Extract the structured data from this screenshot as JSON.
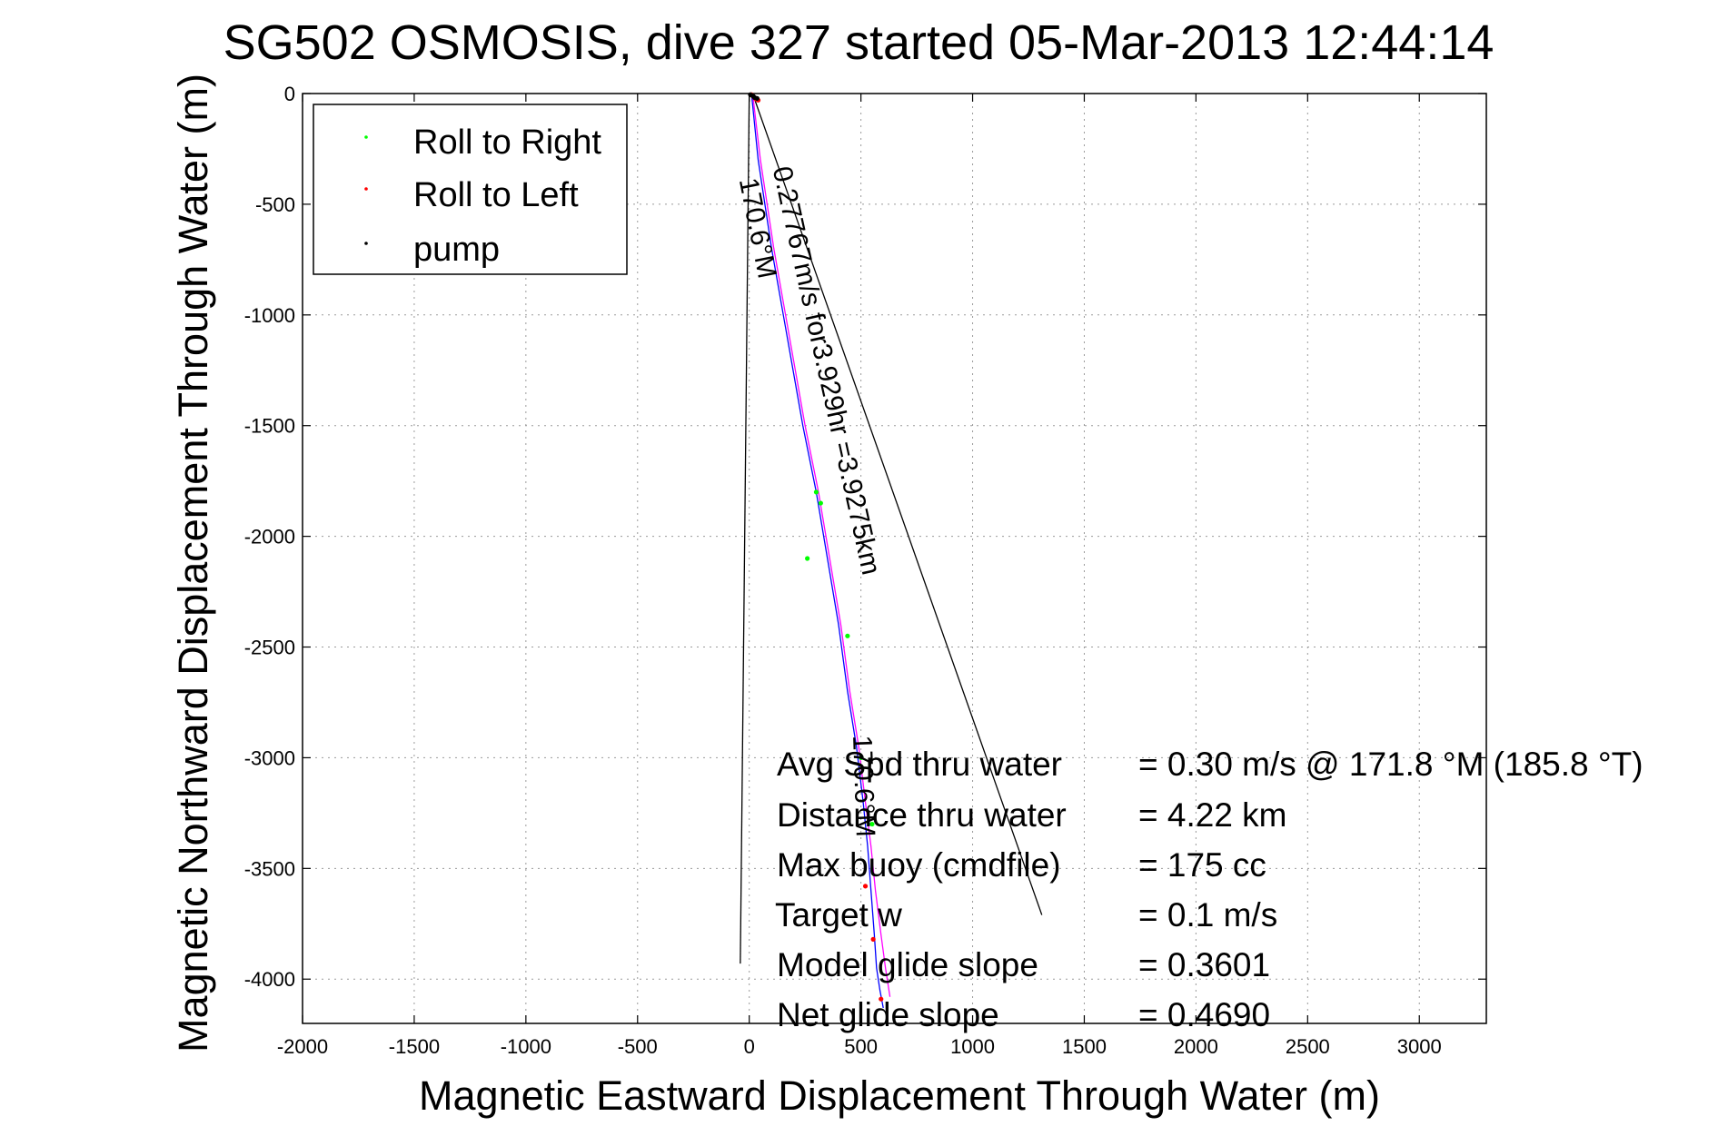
{
  "chart_data": {
    "type": "line",
    "title": "SG502 OSMOSIS, dive 327 started 05-Mar-2013 12:44:14",
    "xlabel": "Magnetic Eastward Displacement Through Water (m)",
    "ylabel": "Magnetic Northward Displacement Through Water (m)",
    "xlim": [
      -2000,
      3300
    ],
    "ylim": [
      -4200,
      0
    ],
    "xticks": [
      -2000,
      -1500,
      -1000,
      -500,
      0,
      500,
      1000,
      1500,
      2000,
      2500,
      3000
    ],
    "yticks": [
      0,
      -500,
      -1000,
      -1500,
      -2000,
      -2500,
      -3000,
      -3500,
      -4000
    ],
    "grid": true,
    "legend_position": "top-left",
    "legend": [
      {
        "label": "Roll to Right",
        "color": "#00ff00"
      },
      {
        "label": "Roll to Left",
        "color": "#ff0000"
      },
      {
        "label": "pump",
        "color": "#000000"
      }
    ],
    "series": [
      {
        "type": "line",
        "color": "#0000ff",
        "x": [
          10,
          40,
          100,
          170,
          240,
          300,
          350,
          400,
          440,
          480,
          510,
          530,
          545,
          560,
          570,
          585,
          600
        ],
        "y": [
          0,
          -300,
          -700,
          -1100,
          -1500,
          -1800,
          -2100,
          -2400,
          -2700,
          -2950,
          -3200,
          -3400,
          -3600,
          -3800,
          -3950,
          -4050,
          -4130
        ]
      },
      {
        "type": "line",
        "color": "#ff00ff",
        "x": [
          15,
          50,
          110,
          180,
          250,
          310,
          360,
          410,
          450,
          490,
          520,
          545,
          565,
          590,
          610,
          630
        ],
        "y": [
          0,
          -300,
          -700,
          -1100,
          -1500,
          -1800,
          -2100,
          -2400,
          -2700,
          -2950,
          -3200,
          -3400,
          -3600,
          -3800,
          -3950,
          -4080
        ]
      },
      {
        "type": "line",
        "color": "#000000",
        "x": [
          15,
          1310
        ],
        "y": [
          0,
          -3710
        ]
      },
      {
        "type": "line",
        "color": "#000000",
        "x": [
          0,
          -40
        ],
        "y": [
          0,
          -3930
        ]
      },
      {
        "type": "scatter",
        "name": "Roll to Right",
        "color": "#00ff00",
        "x": [
          300,
          320,
          260,
          440,
          500,
          550
        ],
        "y": [
          -1800,
          -1850,
          -2100,
          -2450,
          -3000,
          -3300
        ]
      },
      {
        "type": "scatter",
        "name": "Roll to Left",
        "color": "#ff0000",
        "x": [
          10,
          15,
          20,
          25,
          30,
          40,
          520,
          555,
          590
        ],
        "y": [
          -5,
          -10,
          -15,
          -20,
          -25,
          -30,
          -3580,
          -3820,
          -4090
        ]
      },
      {
        "type": "scatter",
        "name": "pump",
        "color": "#000000",
        "x": [
          5,
          12,
          18,
          24,
          35
        ],
        "y": [
          -5,
          -8,
          -12,
          -18,
          -22
        ]
      }
    ],
    "annotations": [
      {
        "text": "0.27767m/s for3.929hr =3.9275km",
        "x": 105,
        "y": -340,
        "rotation_deg": 77.5
      },
      {
        "text": "170.6°M",
        "x": -45,
        "y": -390,
        "rotation_deg": 78.8
      },
      {
        "text": "170.6°M",
        "x": 465,
        "y": -2900,
        "rotation_deg": 88
      }
    ],
    "stats": [
      {
        "label": "Avg Spd thru water",
        "value": "=  0.30 m/s @ 171.8 °M (185.8 °T)"
      },
      {
        "label": "Distance thru water",
        "value": "=  4.22 km"
      },
      {
        "label": "Max buoy (cmdfile)",
        "value": "= 175 cc"
      },
      {
        "label": "Target w",
        "value": "= 0.1 m/s"
      },
      {
        "label": "Model glide slope",
        "value": "= 0.3601"
      },
      {
        "label": "Net glide slope",
        "value": "= 0.4690"
      }
    ]
  }
}
